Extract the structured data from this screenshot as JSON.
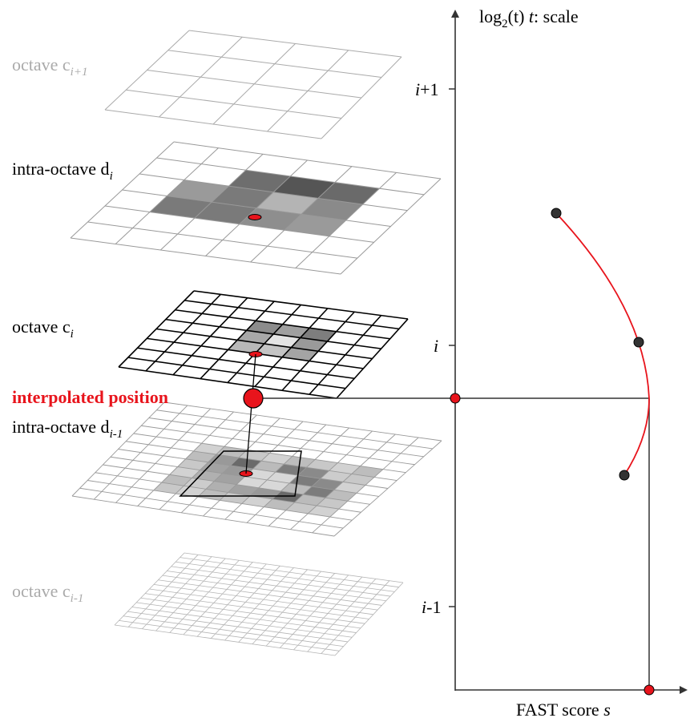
{
  "axis": {
    "y_label_prefix": "log",
    "y_label_sub": "2",
    "y_label_mid": "(t)",
    "y_label_t": "t",
    "y_label_suffix": ": scale",
    "x_label_prefix": "FAST score ",
    "x_label_var": "s",
    "ticks": [
      {
        "name": "i+1",
        "base": "i",
        "rest": "+1"
      },
      {
        "name": "i",
        "base": "i",
        "rest": ""
      },
      {
        "name": "i-1",
        "base": "i",
        "rest": "-1"
      }
    ]
  },
  "layers": [
    {
      "name": "octave-c-i-plus-1",
      "label": "octave c",
      "sub": "i+1",
      "n": 4,
      "color": "#aaaaaa",
      "label_color": "#aaaaaa"
    },
    {
      "name": "intra-octave-d-i",
      "label": "intra-octave d",
      "sub": "i",
      "n": 6,
      "color": "#999999",
      "label_color": "#000000"
    },
    {
      "name": "octave-c-i",
      "label": "octave c",
      "sub": "i",
      "n": 8,
      "color": "#000000",
      "label_color": "#000000"
    },
    {
      "name": "intra-octave-d-i-minus-1",
      "label": "intra-octave d",
      "sub": "i-1",
      "n": 12,
      "color": "#999999",
      "label_color": "#000000"
    },
    {
      "name": "octave-c-i-minus-1",
      "label": "octave c",
      "sub": "i-1",
      "n": 16,
      "color": "#b4b4b4",
      "label_color": "#aaaaaa"
    }
  ],
  "interpolated_label": "interpolated position",
  "colors": {
    "accent": "#e8141c",
    "axis": "#333333",
    "dark_point": "#333333"
  }
}
